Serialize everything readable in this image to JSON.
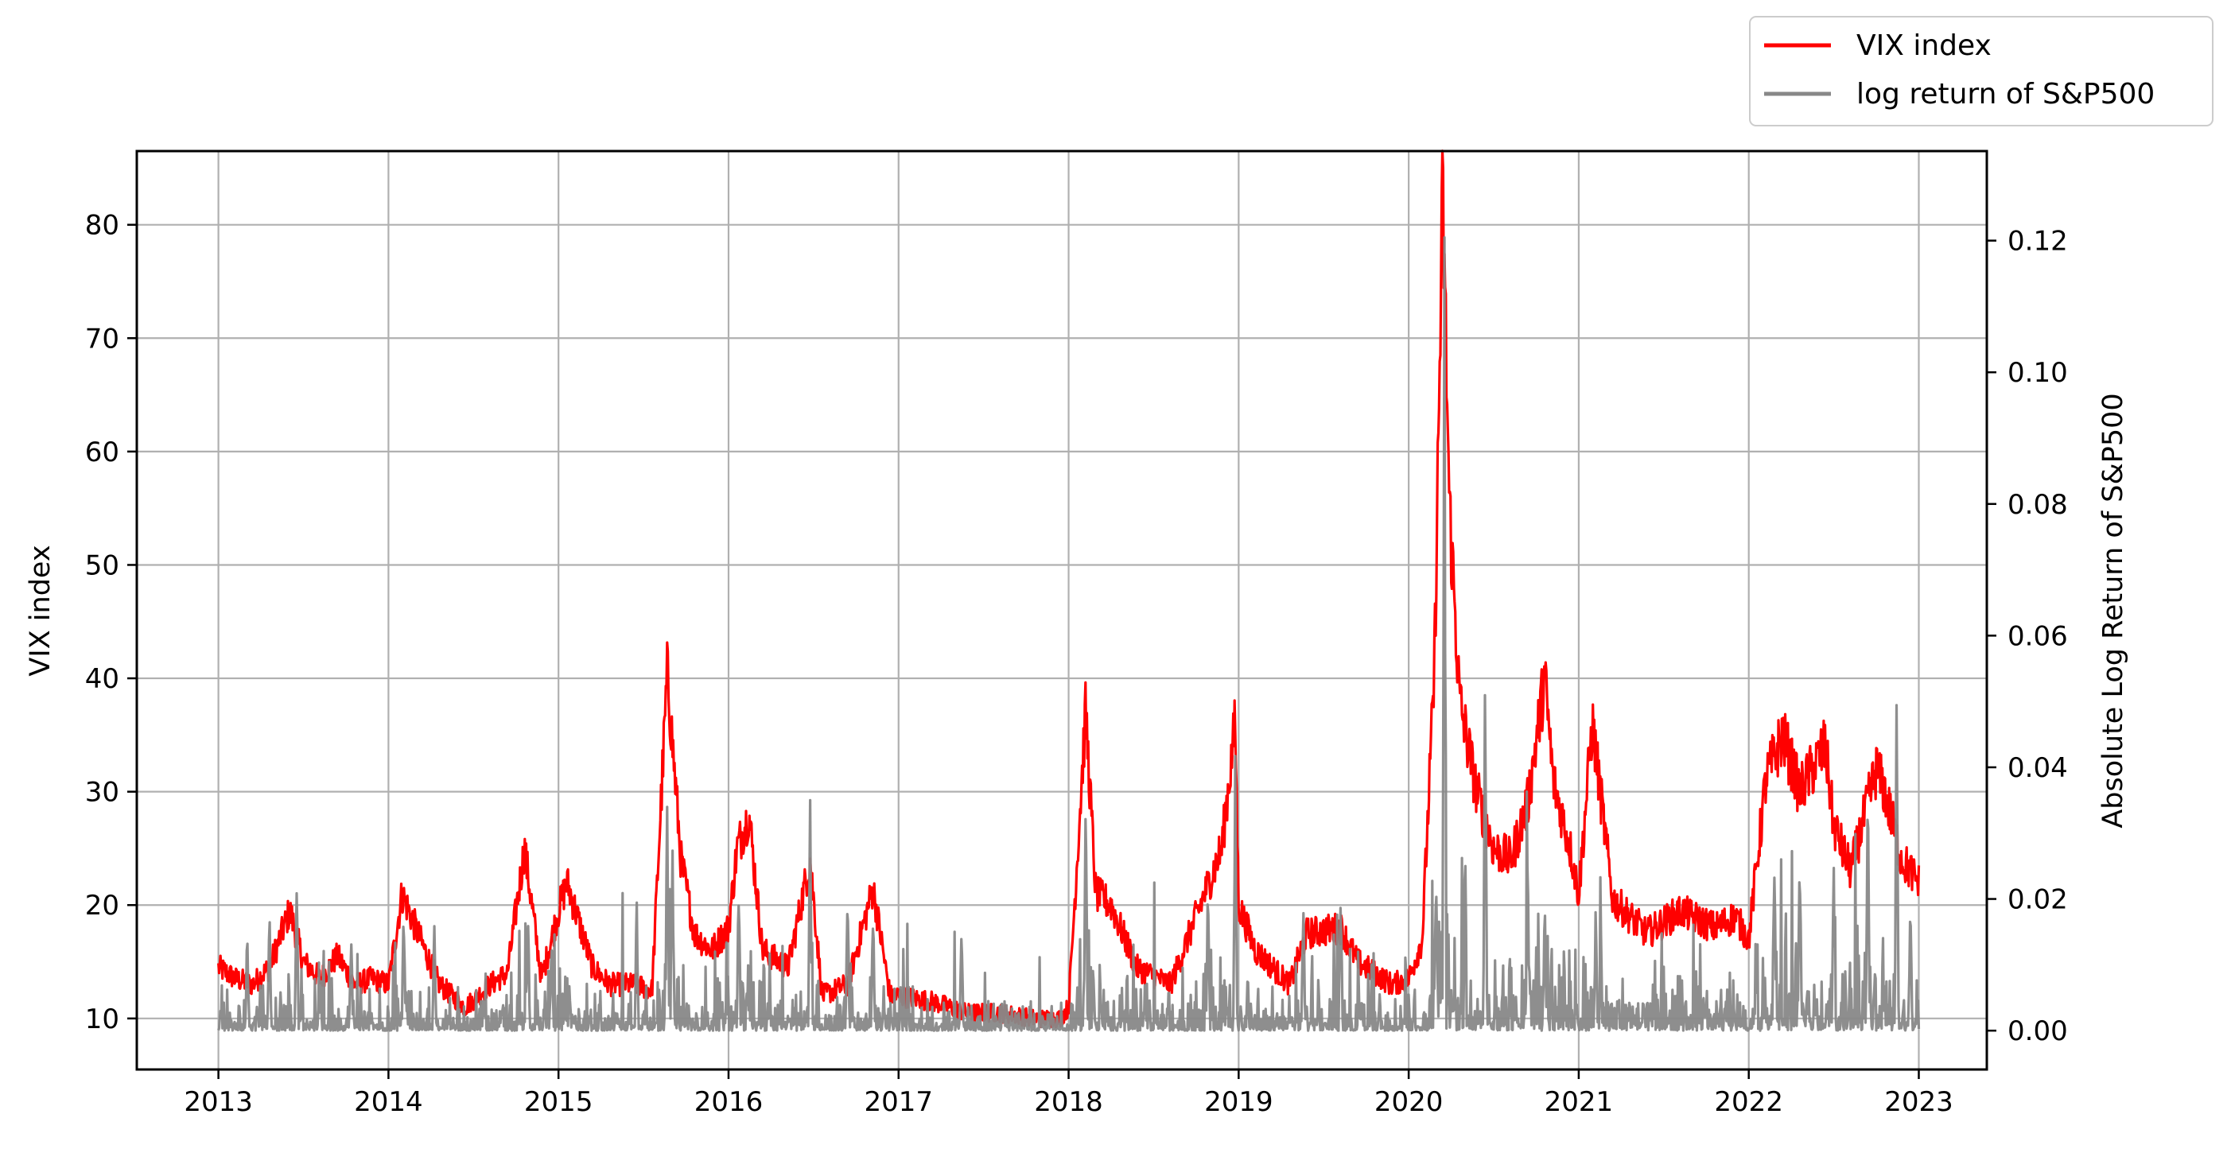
{
  "chart_data": {
    "type": "line",
    "title": "",
    "xlabel": "",
    "ylabel": "VIX index",
    "y2label": "Absolute Log Return of S&P500",
    "xlim": [
      2012.52,
      2023.4
    ],
    "ylim": [
      5.5,
      86.5
    ],
    "y2lim": [
      -0.0059,
      0.1336
    ],
    "grid": true,
    "legend_position": "upper-right, outside plot",
    "x_ticks": [
      2013,
      2014,
      2015,
      2016,
      2017,
      2018,
      2019,
      2020,
      2021,
      2022,
      2023
    ],
    "x_tick_labels": [
      "2013",
      "2014",
      "2015",
      "2016",
      "2017",
      "2018",
      "2019",
      "2020",
      "2021",
      "2022",
      "2023"
    ],
    "y_ticks": [
      10,
      20,
      30,
      40,
      50,
      60,
      70,
      80
    ],
    "y_tick_labels": [
      "10",
      "20",
      "30",
      "40",
      "50",
      "60",
      "70",
      "80"
    ],
    "y2_ticks": [
      0,
      0.02,
      0.04,
      0.06,
      0.08,
      0.1,
      0.12
    ],
    "y2_tick_labels": [
      "0.00",
      "0.02",
      "0.04",
      "0.06",
      "0.08",
      "0.10",
      "0.12"
    ],
    "series": [
      {
        "name": "VIX index",
        "axis": "left",
        "color": "#ff0000",
        "x": [
          2013.0,
          2013.1,
          2013.2,
          2013.3,
          2013.42,
          2013.5,
          2013.6,
          2013.7,
          2013.8,
          2013.9,
          2014.0,
          2014.08,
          2014.2,
          2014.3,
          2014.45,
          2014.6,
          2014.7,
          2014.8,
          2014.9,
          2015.0,
          2015.05,
          2015.2,
          2015.3,
          2015.45,
          2015.55,
          2015.64,
          2015.72,
          2015.8,
          2015.9,
          2016.0,
          2016.05,
          2016.12,
          2016.2,
          2016.35,
          2016.48,
          2016.55,
          2016.7,
          2016.85,
          2016.95,
          2017.0,
          2017.2,
          2017.4,
          2017.6,
          2017.8,
          2017.95,
          2018.0,
          2018.1,
          2018.16,
          2018.25,
          2018.4,
          2018.6,
          2018.8,
          2018.9,
          2018.98,
          2019.0,
          2019.1,
          2019.3,
          2019.4,
          2019.6,
          2019.7,
          2019.9,
          2020.0,
          2020.08,
          2020.15,
          2020.2,
          2020.24,
          2020.3,
          2020.4,
          2020.5,
          2020.6,
          2020.7,
          2020.8,
          2020.85,
          2020.95,
          2021.0,
          2021.08,
          2021.2,
          2021.4,
          2021.6,
          2021.8,
          2021.92,
          2022.0,
          2022.1,
          2022.2,
          2022.3,
          2022.45,
          2022.5,
          2022.6,
          2022.75,
          2022.8,
          2022.9,
          2023.0
        ],
        "values": [
          14.5,
          13.5,
          13.0,
          14.5,
          19.5,
          15.0,
          13.5,
          15.5,
          13.0,
          13.5,
          13.0,
          21.0,
          16.5,
          13.0,
          11.0,
          13.0,
          14.0,
          25.0,
          13.5,
          19.5,
          22.0,
          14.5,
          13.0,
          13.0,
          12.5,
          40.5,
          24.0,
          17.5,
          16.0,
          18.0,
          25.0,
          28.0,
          16.0,
          14.5,
          24.0,
          12.0,
          13.0,
          21.5,
          12.0,
          12.0,
          11.5,
          10.5,
          10.5,
          10.0,
          10.0,
          11.0,
          37.0,
          21.0,
          20.0,
          14.5,
          13.0,
          21.0,
          25.0,
          36.0,
          20.0,
          16.0,
          13.0,
          17.5,
          18.0,
          15.0,
          13.0,
          13.5,
          17.0,
          40.0,
          82.5,
          55.0,
          38.0,
          30.0,
          25.0,
          24.0,
          29.0,
          40.0,
          31.0,
          25.0,
          21.0,
          36.0,
          20.5,
          17.5,
          19.5,
          18.0,
          19.0,
          17.0,
          31.0,
          35.0,
          30.0,
          34.0,
          27.0,
          23.0,
          32.0,
          30.0,
          24.0,
          22.0
        ]
      },
      {
        "name": "log return of S&P500",
        "axis": "right",
        "color": "#888888",
        "peaks_x": [
          2013.17,
          2013.3,
          2013.46,
          2013.78,
          2014.09,
          2014.27,
          2014.82,
          2014.96,
          2015.46,
          2015.64,
          2015.67,
          2016.06,
          2016.48,
          2016.7,
          2016.85,
          2017.37,
          2018.1,
          2018.82,
          2018.98,
          2019.38,
          2019.6,
          2020.16,
          2020.21,
          2020.45,
          2020.7,
          2020.8,
          2021.1,
          2022.15,
          2022.3,
          2022.5,
          2022.7,
          2022.87,
          2022.95
        ],
        "peaks_values": [
          0.017,
          0.022,
          0.025,
          0.017,
          0.021,
          0.019,
          0.021,
          0.017,
          0.022,
          0.04,
          0.032,
          0.026,
          0.036,
          0.025,
          0.023,
          0.018,
          0.041,
          0.028,
          0.044,
          0.023,
          0.026,
          0.028,
          0.128,
          0.061,
          0.029,
          0.021,
          0.021,
          0.03,
          0.034,
          0.027,
          0.039,
          0.054,
          0.022
        ]
      }
    ]
  }
}
